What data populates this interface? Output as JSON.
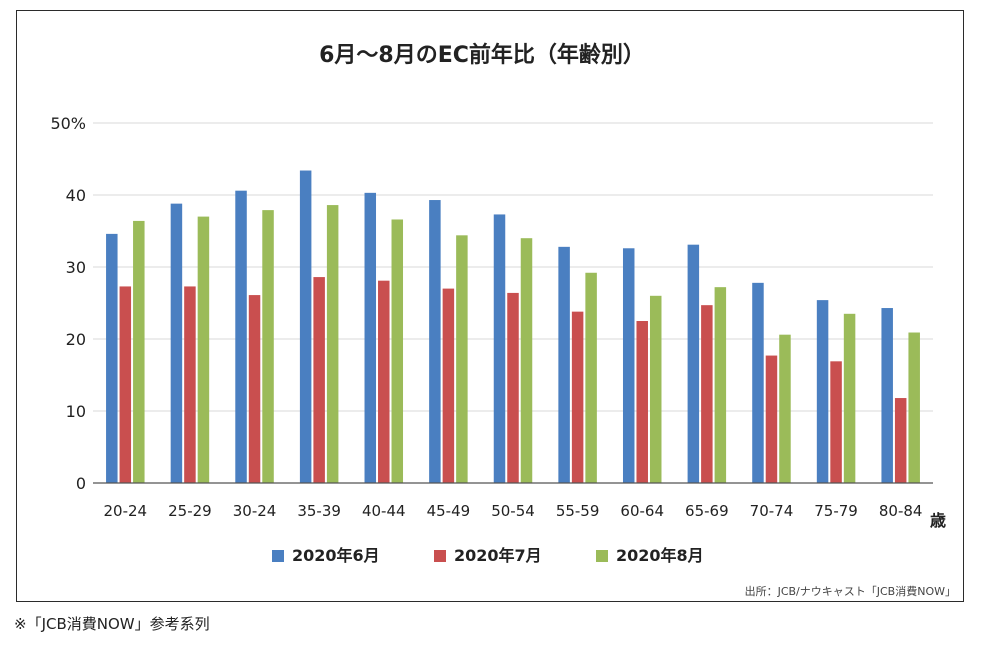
{
  "chart_data": {
    "type": "bar",
    "title": "6月～8月のEC前年比（年齢別）",
    "ylim": [
      0,
      50
    ],
    "yticks": [
      0,
      10,
      20,
      30,
      40,
      50
    ],
    "ytick_labels": [
      "0",
      "10",
      "20",
      "30",
      "40",
      "50%"
    ],
    "grid": true,
    "legend_position": "bottom",
    "x_unit": "歳",
    "categories": [
      "20-24",
      "25-29",
      "30-24",
      "35-39",
      "40-44",
      "45-49",
      "50-54",
      "55-59",
      "60-64",
      "65-69",
      "70-74",
      "75-79",
      "80-84"
    ],
    "series": [
      {
        "name": "2020年6月",
        "color": "#4a7fc1",
        "values": [
          34.6,
          38.8,
          40.6,
          43.4,
          40.3,
          39.3,
          37.3,
          32.8,
          32.6,
          33.1,
          27.8,
          25.4,
          24.3
        ]
      },
      {
        "name": "2020年7月",
        "color": "#c94f4f",
        "values": [
          27.3,
          27.3,
          26.1,
          28.6,
          28.1,
          27.0,
          26.4,
          23.8,
          22.5,
          24.7,
          17.7,
          16.9,
          11.8
        ]
      },
      {
        "name": "2020年8月",
        "color": "#9bbb59",
        "values": [
          36.4,
          37.0,
          37.9,
          38.6,
          36.6,
          34.4,
          34.0,
          29.2,
          26.0,
          27.2,
          20.6,
          23.5,
          20.9
        ]
      }
    ],
    "source": "出所：JCB/ナウキャスト「JCB消費NOW」"
  },
  "footnote": "※「JCB消費NOW」参考系列",
  "colors": {
    "grid": "#d9d9d9",
    "axis": "#555555",
    "text": "#222222"
  }
}
